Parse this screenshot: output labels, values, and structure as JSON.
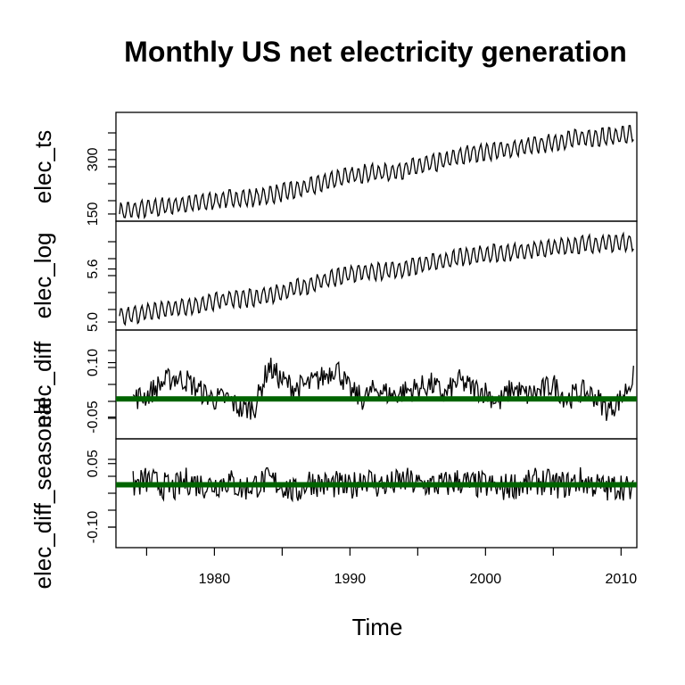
{
  "chart_data": {
    "type": "line",
    "title": "Monthly US net electricity generation",
    "xlabel": "Time",
    "x_range": [
      1973,
      2010.9
    ],
    "x_ticks": [
      "1980",
      "1990",
      "2000",
      "2010"
    ],
    "panels": [
      {
        "ylabel": "elec_ts",
        "ylim": [
          140,
          420
        ],
        "y_ticks": [
          "150",
          "300"
        ],
        "reference_line": null,
        "series": {
          "x": [
            1973.0,
            1975.0,
            1977.0,
            1979.0,
            1981.0,
            1983.0,
            1985.0,
            1987.0,
            1989.0,
            1991.0,
            1993.0,
            1995.0,
            1997.0,
            1999.0,
            2001.0,
            2003.0,
            2005.0,
            2007.0,
            2009.0,
            2010.9
          ],
          "y": [
            156,
            165,
            174,
            182,
            192,
            195,
            209,
            225,
            248,
            262,
            265,
            281,
            297,
            318,
            325,
            335,
            347,
            360,
            363,
            370
          ]
        }
      },
      {
        "ylabel": "elec_log",
        "ylim": [
          4.95,
          6.1
        ],
        "y_ticks": [
          "5.0",
          "5.6"
        ],
        "reference_line": null,
        "series": {
          "x": [
            1973.0,
            1975.0,
            1977.0,
            1979.0,
            1981.0,
            1983.0,
            1985.0,
            1987.0,
            1989.0,
            1991.0,
            1993.0,
            1995.0,
            1997.0,
            1999.0,
            2001.0,
            2003.0,
            2005.0,
            2007.0,
            2009.0,
            2010.9
          ],
          "y": [
            5.05,
            5.11,
            5.16,
            5.2,
            5.26,
            5.27,
            5.34,
            5.42,
            5.51,
            5.57,
            5.58,
            5.64,
            5.69,
            5.76,
            5.78,
            5.81,
            5.84,
            5.88,
            5.89,
            5.91
          ]
        }
      },
      {
        "ylabel": "elec_diff",
        "ylim": [
          -0.1,
          0.18
        ],
        "y_ticks": [
          "-0.05",
          "0.10"
        ],
        "reference_line": 0,
        "series": {
          "x": [
            1974.0,
            1975.0,
            1976.0,
            1977.0,
            1978.0,
            1979.0,
            1980.0,
            1981.0,
            1982.0,
            1983.0,
            1984.0,
            1985.0,
            1986.0,
            1987.0,
            1988.0,
            1989.0,
            1990.0,
            1991.0,
            1992.0,
            1993.0,
            1994.0,
            1995.0,
            1996.0,
            1997.0,
            1998.0,
            1999.0,
            2000.0,
            2001.0,
            2002.0,
            2003.0,
            2004.0,
            2005.0,
            2006.0,
            2007.0,
            2008.0,
            2009.0,
            2010.0,
            2010.9
          ],
          "y": [
            0.0,
            0.01,
            0.04,
            0.06,
            0.05,
            0.02,
            0.0,
            0.0,
            -0.03,
            -0.02,
            0.09,
            0.05,
            0.03,
            0.04,
            0.06,
            0.09,
            0.02,
            0.0,
            0.03,
            0.01,
            0.02,
            0.03,
            0.04,
            0.01,
            0.05,
            0.03,
            0.02,
            -0.01,
            0.03,
            0.01,
            0.02,
            0.04,
            0.0,
            0.02,
            0.01,
            -0.03,
            0.0,
            0.06
          ]
        }
      },
      {
        "ylabel": "elec_diff_seasonal",
        "ylim": [
          -0.14,
          0.1
        ],
        "y_ticks": [
          "-0.10",
          "0.05"
        ],
        "reference_line": 0,
        "series": {
          "x": [
            1974.0,
            1975.0,
            1976.0,
            1977.0,
            1978.0,
            1979.0,
            1980.0,
            1981.0,
            1982.0,
            1983.0,
            1984.0,
            1985.0,
            1986.0,
            1987.0,
            1988.0,
            1989.0,
            1990.0,
            1991.0,
            1992.0,
            1993.0,
            1994.0,
            1995.0,
            1996.0,
            1997.0,
            1998.0,
            1999.0,
            2000.0,
            2001.0,
            2002.0,
            2003.0,
            2004.0,
            2005.0,
            2006.0,
            2007.0,
            2008.0,
            2009.0,
            2010.0,
            2010.9
          ],
          "y": [
            0.0,
            0.01,
            0.0,
            -0.01,
            0.01,
            0.0,
            0.0,
            0.01,
            -0.01,
            0.0,
            0.01,
            0.0,
            -0.02,
            0.01,
            0.0,
            0.0,
            -0.01,
            0.02,
            0.0,
            0.0,
            0.01,
            0.0,
            0.0,
            0.0,
            0.01,
            0.0,
            0.0,
            -0.01,
            0.0,
            0.0,
            0.01,
            0.0,
            0.0,
            0.01,
            0.0,
            -0.01,
            0.0,
            -0.02
          ]
        }
      }
    ],
    "colors": {
      "line": "#000000",
      "reference_line": "#006400"
    }
  }
}
